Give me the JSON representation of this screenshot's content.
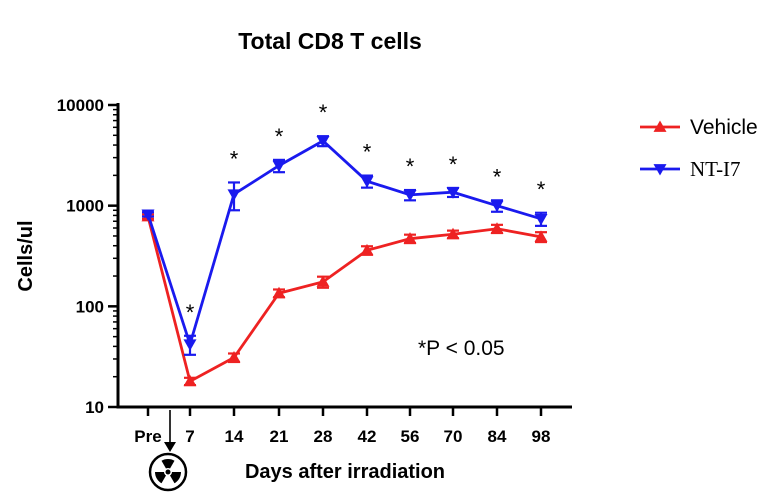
{
  "chart_data": {
    "type": "line",
    "title": "Total CD8 T cells",
    "xlabel": "Days after irradiation",
    "ylabel": "Cells/ul",
    "yscale": "log",
    "ylim": [
      10,
      10000
    ],
    "yticks": [
      "10",
      "100",
      "1000",
      "10000"
    ],
    "categories": [
      "Pre",
      "7",
      "14",
      "21",
      "28",
      "42",
      "56",
      "70",
      "84",
      "98"
    ],
    "series": [
      {
        "name": "Vehicle",
        "color": "#ee2222",
        "marker": "triangle-up",
        "values": [
          780,
          18,
          31,
          135,
          175,
          360,
          470,
          520,
          590,
          490
        ],
        "err": [
          40,
          1.5,
          3,
          12,
          22,
          35,
          45,
          45,
          55,
          55
        ]
      },
      {
        "name": "NT-I7",
        "color": "#1a1aee",
        "marker": "triangle-down",
        "values": [
          820,
          42,
          1300,
          2500,
          4400,
          1750,
          1280,
          1360,
          1000,
          740
        ],
        "err": [
          40,
          9,
          400,
          350,
          500,
          240,
          150,
          140,
          130,
          110
        ]
      }
    ],
    "significance_marks": [
      "",
      "*",
      "*",
      "*",
      "*",
      "*",
      "*",
      "*",
      "*",
      "*"
    ],
    "annotation": "*P < 0.05",
    "legend_position": "right",
    "irradiation_icon": "radiation-icon"
  }
}
